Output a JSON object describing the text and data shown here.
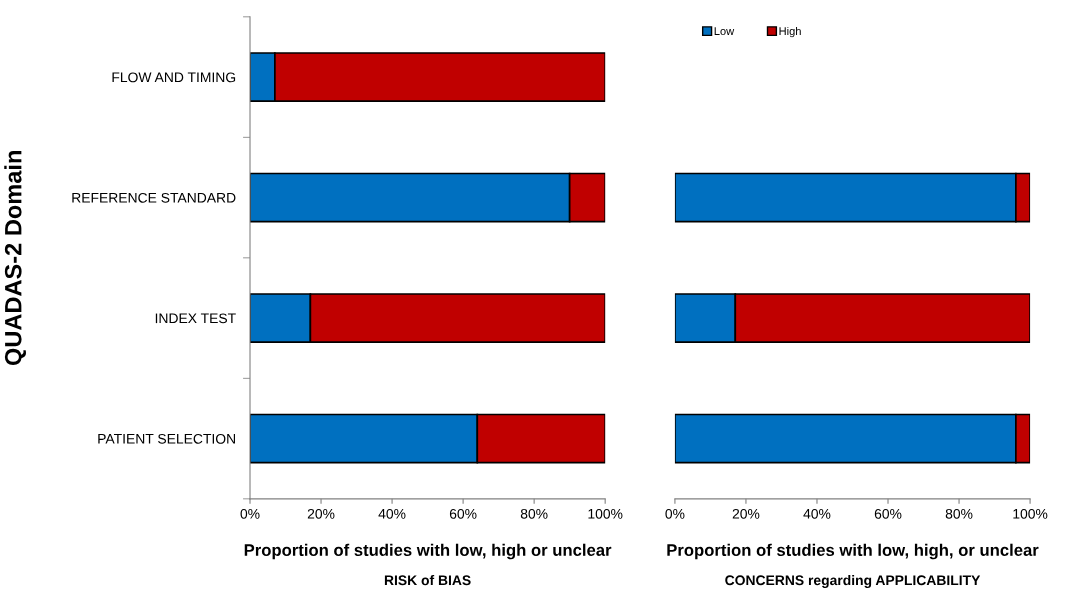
{
  "chart_data": [
    {
      "type": "bar",
      "orientation": "horizontal",
      "stacked": true,
      "ylabel": "QUADAS-2 Domain",
      "xlabel": "Proportion of studies with low, high or unclear",
      "annotations": [
        "RISK of BIAS"
      ],
      "categories": [
        "FLOW AND TIMING",
        "REFERENCE STANDARD",
        "INDEX TEST",
        "PATIENT SELECTION"
      ],
      "series": [
        {
          "color": "#0070c0",
          "values": [
            7,
            90,
            17,
            64
          ]
        },
        {
          "color": "#c00000",
          "values": [
            93,
            10,
            83,
            36
          ]
        }
      ],
      "xlim": [
        0,
        100
      ],
      "xticks": [
        {
          "value": 0,
          "label": "0%"
        },
        {
          "value": 20,
          "label": "20%"
        },
        {
          "value": 40,
          "label": "40%"
        },
        {
          "value": 60,
          "label": "60%"
        },
        {
          "value": 80,
          "label": "80%"
        },
        {
          "value": 100,
          "label": "100%"
        }
      ],
      "grid": false
    },
    {
      "type": "bar",
      "orientation": "horizontal",
      "stacked": true,
      "xlabel": "Proportion of studies with low, high, or unclear",
      "annotations": [
        "CONCERNS regarding APPLICABILITY"
      ],
      "categories": [
        null,
        null,
        null,
        null
      ],
      "series": [
        {
          "name": "Low",
          "color": "#0070c0",
          "values": [
            null,
            96,
            17,
            96
          ]
        },
        {
          "name": "High",
          "color": "#c00000",
          "values": [
            null,
            4,
            83,
            4
          ]
        }
      ],
      "xlim": [
        0,
        100
      ],
      "xticks": [
        {
          "value": 0,
          "label": "0%"
        },
        {
          "value": 20,
          "label": "20%"
        },
        {
          "value": 40,
          "label": "40%"
        },
        {
          "value": 60,
          "label": "60%"
        },
        {
          "value": 80,
          "label": "80%"
        },
        {
          "value": 100,
          "label": "100%"
        }
      ],
      "tick_labels": "x",
      "legend": "top left",
      "grid": false
    }
  ]
}
